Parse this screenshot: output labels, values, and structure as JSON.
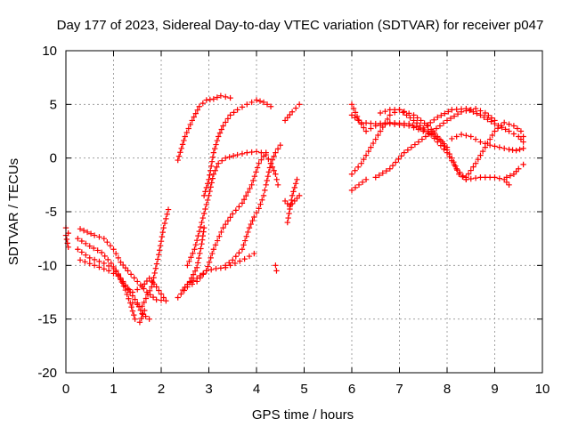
{
  "chart_data": {
    "type": "scatter",
    "title": "Day 177 of 2023, Sidereal Day-to-day VTEC variation (SDTVAR) for receiver p047",
    "xlabel": "GPS time / hours",
    "ylabel": "SDTVAR / TECUs",
    "xlim": [
      0,
      10
    ],
    "ylim": [
      -20,
      10
    ],
    "xticks": [
      "0",
      "1",
      "2",
      "3",
      "4",
      "5",
      "6",
      "7",
      "8",
      "9",
      "10"
    ],
    "yticks": [
      "-20",
      "-15",
      "-10",
      "-5",
      "0",
      "5",
      "10"
    ],
    "grid": true,
    "marker": "plus",
    "color": "#ff0000",
    "tracks": [
      [
        [
          0.0,
          -6.5
        ],
        [
          0.05,
          -7.0
        ]
      ],
      [
        [
          0.0,
          -7.2
        ],
        [
          0.05,
          -8.3
        ]
      ],
      [
        [
          0.3,
          -6.6
        ],
        [
          0.6,
          -7.2
        ],
        [
          0.8,
          -7.5
        ],
        [
          1.0,
          -8.5
        ],
        [
          1.15,
          -9.7
        ],
        [
          1.3,
          -10.5
        ],
        [
          1.5,
          -11.5
        ],
        [
          1.7,
          -12.5
        ],
        [
          1.9,
          -13.2
        ],
        [
          2.1,
          -13.3
        ]
      ],
      [
        [
          0.25,
          -8.5
        ],
        [
          0.5,
          -9.3
        ],
        [
          0.8,
          -9.8
        ],
        [
          1.0,
          -10.3
        ],
        [
          1.2,
          -11.5
        ],
        [
          1.35,
          -12.5
        ],
        [
          1.5,
          -13.5
        ],
        [
          1.6,
          -14.5
        ],
        [
          1.75,
          -15.0
        ]
      ],
      [
        [
          0.3,
          -9.5
        ],
        [
          0.6,
          -10.0
        ],
        [
          0.9,
          -10.5
        ],
        [
          1.1,
          -11.0
        ],
        [
          1.25,
          -12.0
        ],
        [
          1.4,
          -12.5
        ],
        [
          1.6,
          -12.0
        ],
        [
          1.75,
          -11.2
        ],
        [
          1.9,
          -12.0
        ],
        [
          2.05,
          -13.0
        ]
      ],
      [
        [
          0.25,
          -7.5
        ],
        [
          0.5,
          -8.2
        ],
        [
          0.75,
          -8.8
        ],
        [
          0.95,
          -9.8
        ],
        [
          1.1,
          -10.8
        ],
        [
          1.25,
          -12.3
        ],
        [
          1.35,
          -13.5
        ],
        [
          1.45,
          -15.0
        ],
        [
          1.55,
          -15.3
        ],
        [
          1.65,
          -14.2
        ]
      ],
      [
        [
          1.4,
          -13.5
        ],
        [
          1.6,
          -13.8
        ],
        [
          1.8,
          -12.0
        ],
        [
          1.95,
          -9.0
        ],
        [
          2.05,
          -6.5
        ],
        [
          2.15,
          -4.8
        ]
      ],
      [
        [
          2.35,
          -0.2
        ],
        [
          2.5,
          2.0
        ],
        [
          2.65,
          3.5
        ],
        [
          2.8,
          4.8
        ],
        [
          2.95,
          5.4
        ],
        [
          3.1,
          5.5
        ],
        [
          3.25,
          5.8
        ],
        [
          3.45,
          5.6
        ]
      ],
      [
        [
          2.35,
          -13.0
        ],
        [
          2.55,
          -12.0
        ],
        [
          2.75,
          -11.5
        ],
        [
          2.95,
          -10.5
        ],
        [
          3.15,
          -10.3
        ],
        [
          3.35,
          -10.2
        ],
        [
          3.55,
          -9.8
        ],
        [
          3.75,
          -9.4
        ],
        [
          3.95,
          -8.9
        ]
      ],
      [
        [
          2.45,
          -12.3
        ],
        [
          2.6,
          -11.5
        ],
        [
          2.75,
          -10.2
        ],
        [
          2.85,
          -8.0
        ],
        [
          2.9,
          -6.5
        ]
      ],
      [
        [
          2.6,
          -11.6
        ],
        [
          2.75,
          -11.2
        ],
        [
          2.95,
          -10.5
        ],
        [
          3.1,
          -8.5
        ],
        [
          3.3,
          -6.5
        ],
        [
          3.5,
          -5.2
        ],
        [
          3.7,
          -4.2
        ],
        [
          3.9,
          -2.5
        ],
        [
          4.05,
          -0.5
        ],
        [
          4.2,
          0.5
        ]
      ],
      [
        [
          2.55,
          -10.0
        ],
        [
          2.7,
          -8.5
        ],
        [
          2.85,
          -6.0
        ],
        [
          3.0,
          -3.5
        ],
        [
          3.1,
          -1.5
        ],
        [
          3.2,
          -0.5
        ],
        [
          3.35,
          0.0
        ],
        [
          3.6,
          0.3
        ],
        [
          3.8,
          0.5
        ],
        [
          4.0,
          0.6
        ],
        [
          4.1,
          0.5
        ],
        [
          4.2,
          0.3
        ],
        [
          4.3,
          -0.5
        ],
        [
          4.4,
          -1.5
        ],
        [
          4.45,
          -2.5
        ]
      ],
      [
        [
          2.9,
          -3.5
        ],
        [
          3.0,
          -2.0
        ],
        [
          3.1,
          0.5
        ],
        [
          3.2,
          2.0
        ],
        [
          3.3,
          3.0
        ],
        [
          3.45,
          4.0
        ],
        [
          3.6,
          4.5
        ],
        [
          3.8,
          5.0
        ],
        [
          4.0,
          5.4
        ],
        [
          4.15,
          5.2
        ],
        [
          4.3,
          4.8
        ]
      ],
      [
        [
          3.35,
          -10.0
        ],
        [
          3.5,
          -9.5
        ],
        [
          3.7,
          -8.5
        ],
        [
          3.85,
          -6.5
        ],
        [
          3.95,
          -5.5
        ],
        [
          4.05,
          -4.7
        ],
        [
          4.15,
          -3.5
        ],
        [
          4.2,
          -2.5
        ],
        [
          4.3,
          -0.5
        ],
        [
          4.4,
          0.5
        ],
        [
          4.5,
          1.2
        ]
      ],
      [
        [
          4.4,
          -10.0
        ],
        [
          4.42,
          -10.5
        ]
      ],
      [
        [
          4.6,
          -4.0
        ],
        [
          4.7,
          -4.5
        ],
        [
          4.8,
          -4.0
        ],
        [
          4.9,
          -3.5
        ]
      ],
      [
        [
          4.65,
          -6.0
        ],
        [
          4.75,
          -3.5
        ],
        [
          4.85,
          -2.0
        ]
      ],
      [
        [
          4.6,
          3.5
        ],
        [
          4.75,
          4.3
        ],
        [
          4.9,
          5.0
        ]
      ],
      [
        [
          6.0,
          -3.0
        ],
        [
          6.15,
          -2.5
        ],
        [
          6.3,
          -2.0
        ]
      ],
      [
        [
          6.0,
          5.0
        ],
        [
          6.15,
          3.5
        ],
        [
          6.3,
          2.5
        ],
        [
          6.5,
          3.0
        ],
        [
          6.8,
          3.2
        ],
        [
          7.2,
          3.0
        ],
        [
          7.5,
          2.5
        ],
        [
          7.7,
          2.2
        ],
        [
          7.9,
          1.5
        ],
        [
          8.1,
          0.0
        ],
        [
          8.25,
          -1.5
        ],
        [
          8.4,
          -2.0
        ]
      ],
      [
        [
          6.0,
          4.0
        ],
        [
          6.2,
          3.3
        ],
        [
          6.5,
          3.2
        ],
        [
          6.8,
          3.3
        ],
        [
          7.2,
          3.2
        ],
        [
          7.6,
          2.5
        ],
        [
          7.8,
          1.5
        ],
        [
          8.0,
          0.5
        ],
        [
          8.2,
          -1.0
        ],
        [
          8.4,
          -2.0
        ],
        [
          8.7,
          -1.8
        ],
        [
          9.0,
          -1.8
        ],
        [
          9.2,
          -2.0
        ],
        [
          9.3,
          -2.5
        ]
      ],
      [
        [
          6.0,
          -1.5
        ],
        [
          6.2,
          -0.5
        ],
        [
          6.4,
          1.0
        ],
        [
          6.6,
          2.5
        ],
        [
          6.8,
          4.0
        ],
        [
          7.0,
          4.5
        ],
        [
          7.3,
          4.0
        ],
        [
          7.6,
          3.0
        ],
        [
          7.8,
          2.0
        ],
        [
          8.0,
          1.0
        ]
      ],
      [
        [
          6.6,
          4.2
        ],
        [
          6.8,
          4.5
        ],
        [
          7.0,
          4.5
        ],
        [
          7.3,
          3.5
        ],
        [
          7.5,
          2.8
        ],
        [
          7.8,
          3.8
        ],
        [
          8.1,
          4.5
        ],
        [
          8.4,
          4.6
        ],
        [
          8.7,
          4.0
        ],
        [
          9.0,
          3.2
        ],
        [
          9.3,
          2.5
        ],
        [
          9.5,
          2.0
        ],
        [
          9.6,
          1.5
        ]
      ],
      [
        [
          6.5,
          -1.8
        ],
        [
          6.8,
          -1.0
        ],
        [
          7.1,
          0.5
        ],
        [
          7.4,
          1.5
        ],
        [
          7.7,
          2.5
        ],
        [
          8.0,
          3.5
        ],
        [
          8.3,
          4.3
        ],
        [
          8.6,
          4.6
        ],
        [
          8.8,
          4.2
        ],
        [
          9.0,
          3.5
        ]
      ],
      [
        [
          8.1,
          1.8
        ],
        [
          8.3,
          2.2
        ],
        [
          8.5,
          2.0
        ],
        [
          8.7,
          1.5
        ],
        [
          8.9,
          1.2
        ],
        [
          9.1,
          1.0
        ],
        [
          9.3,
          0.8
        ],
        [
          9.45,
          0.7
        ],
        [
          9.6,
          0.9
        ]
      ],
      [
        [
          8.4,
          -1.8
        ],
        [
          8.6,
          -0.5
        ],
        [
          8.8,
          1.0
        ],
        [
          9.0,
          2.5
        ],
        [
          9.2,
          3.3
        ],
        [
          9.4,
          3.0
        ],
        [
          9.55,
          2.5
        ],
        [
          9.6,
          2.0
        ]
      ],
      [
        [
          9.25,
          -1.8
        ],
        [
          9.4,
          -1.5
        ],
        [
          9.5,
          -1.0
        ],
        [
          9.6,
          -0.6
        ]
      ]
    ]
  }
}
